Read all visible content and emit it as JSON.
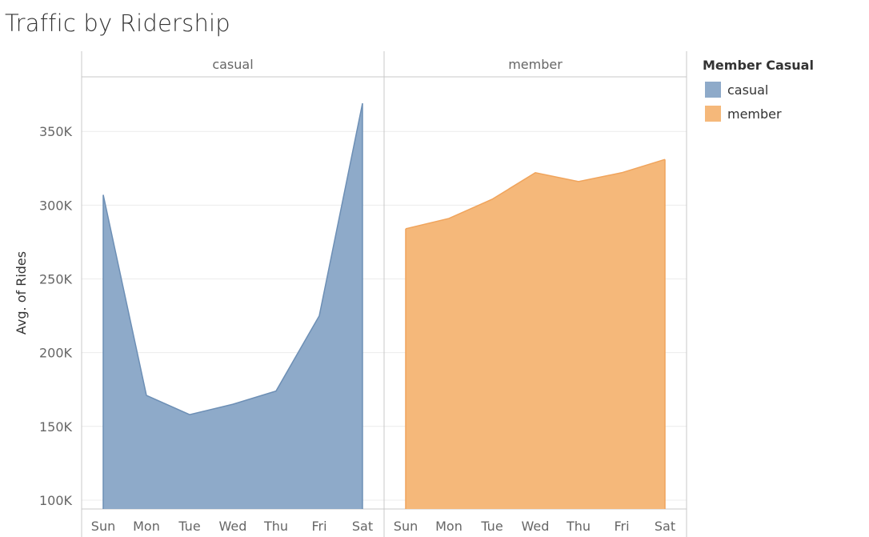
{
  "title": "Traffic by Ridership",
  "chart_data": {
    "type": "area",
    "categories": [
      "Sun",
      "Mon",
      "Tue",
      "Wed",
      "Thu",
      "Fri",
      "Sat"
    ],
    "facets": [
      "casual",
      "member"
    ],
    "series": [
      {
        "name": "casual",
        "facet": "casual",
        "color": "#8eaac9",
        "stroke": "#6d8fb5",
        "values": [
          307000,
          171000,
          158000,
          165000,
          174000,
          225000,
          369000
        ]
      },
      {
        "name": "member",
        "facet": "member",
        "color": "#f5b87a",
        "stroke": "#f0a45c",
        "values": [
          284000,
          291000,
          304000,
          322000,
          316000,
          322000,
          331000
        ]
      }
    ],
    "ylabel": "Avg. of Rides",
    "y_ticks": [
      100000,
      150000,
      200000,
      250000,
      300000,
      350000
    ],
    "y_tick_labels": [
      "100K",
      "150K",
      "200K",
      "250K",
      "300K",
      "350K"
    ],
    "y_baseline": 94000,
    "ylim": [
      94000,
      387000
    ],
    "grid": true
  },
  "legend": {
    "title": "Member Casual",
    "items": [
      {
        "label": "casual",
        "color": "#8eaac9"
      },
      {
        "label": "member",
        "color": "#f5b87a"
      }
    ]
  }
}
